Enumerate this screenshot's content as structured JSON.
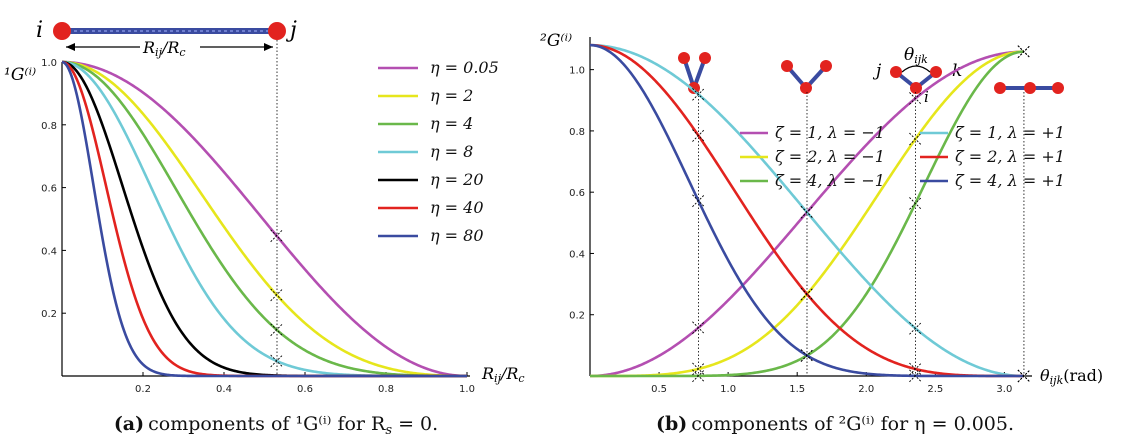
{
  "chart_data": [
    {
      "type": "line",
      "title": "components of 1G(i) for Rs = 0.",
      "caption_tag": "(a)",
      "caption_text": "components of ¹G⁽ⁱ⁾ for R",
      "caption_sub": "s",
      "caption_tail": " = 0.",
      "ylabel": "¹G⁽ⁱ⁾",
      "xlabel": "R",
      "xlabel_sub": "ij",
      "xlabel_tail": "/R",
      "xlabel_sub2": "c",
      "xlim": [
        0,
        1.0
      ],
      "ylim": [
        0,
        1.0
      ],
      "xticks": [
        "0.2",
        "0.4",
        "0.6",
        "0.8",
        "1.0"
      ],
      "xtick_values": [
        0.2,
        0.4,
        0.6,
        0.8,
        1.0
      ],
      "yticks": [
        "0.2",
        "0.4",
        "0.6",
        "0.8",
        "1.0"
      ],
      "ytick_values": [
        0.2,
        0.4,
        0.6,
        0.8,
        1.0
      ],
      "marker_x": 0.53,
      "diagram": {
        "atom_i": "i",
        "atom_j": "j",
        "distance_label": "R",
        "distance_sub": "ij",
        "distance_tail": "/R",
        "distance_sub2": "c"
      },
      "series": [
        {
          "name": "η = 0.05",
          "eta": 0.05,
          "color": "#b44fb1"
        },
        {
          "name": "η = 2",
          "eta": 2,
          "color": "#e6e61c"
        },
        {
          "name": "η = 4",
          "eta": 4,
          "color": "#6ab84a"
        },
        {
          "name": "η = 8",
          "eta": 8,
          "color": "#6fcad6"
        },
        {
          "name": "η = 20",
          "eta": 20,
          "color": "#000000"
        },
        {
          "name": "η = 40",
          "eta": 40,
          "color": "#e2231f"
        },
        {
          "name": "η = 80",
          "eta": 80,
          "color": "#3a4ba0"
        }
      ]
    },
    {
      "type": "line",
      "title": "components of 2G(i) for η = 0.005.",
      "caption_tag": "(b)",
      "caption_text": "components of ²G⁽ⁱ⁾ for η = 0.005.",
      "ylabel": "²G⁽ⁱ⁾",
      "xlabel": "θ",
      "xlabel_sub": "ijk",
      "xlabel_tail": "(rad)",
      "xlim": [
        0,
        3.2
      ],
      "ylim": [
        0,
        1.1
      ],
      "xticks": [
        "0.5",
        "1.0",
        "1.5",
        "2.0",
        "2.5",
        "3.0"
      ],
      "xtick_values": [
        0.5,
        1.0,
        1.5,
        2.0,
        2.5,
        3.0
      ],
      "yticks": [
        "0.2",
        "0.4",
        "0.6",
        "0.8",
        "1.0"
      ],
      "ytick_values": [
        0.2,
        0.4,
        0.6,
        0.8,
        1.0
      ],
      "marker_x": [
        0.785,
        1.571,
        2.356,
        3.1416
      ],
      "diagram": {
        "angle_label": "θ",
        "angle_sub": "ijk",
        "atom_i": "i",
        "atom_j": "j",
        "atom_k": "k"
      },
      "series": [
        {
          "name": "ζ = 1, λ = −1",
          "zeta": 1,
          "lambda": -1,
          "color": "#b44fb1"
        },
        {
          "name": "ζ = 2, λ = −1",
          "zeta": 2,
          "lambda": -1,
          "color": "#e6e61c"
        },
        {
          "name": "ζ = 4, λ = −1",
          "zeta": 4,
          "lambda": -1,
          "color": "#6ab84a"
        },
        {
          "name": "ζ = 1, λ = +1",
          "zeta": 1,
          "lambda": 1,
          "color": "#6fcad6"
        },
        {
          "name": "ζ = 2, λ = +1",
          "zeta": 2,
          "lambda": 1,
          "color": "#e2231f"
        },
        {
          "name": "ζ = 4, λ = +1",
          "zeta": 4,
          "lambda": 1,
          "color": "#3a4ba0"
        }
      ]
    }
  ]
}
